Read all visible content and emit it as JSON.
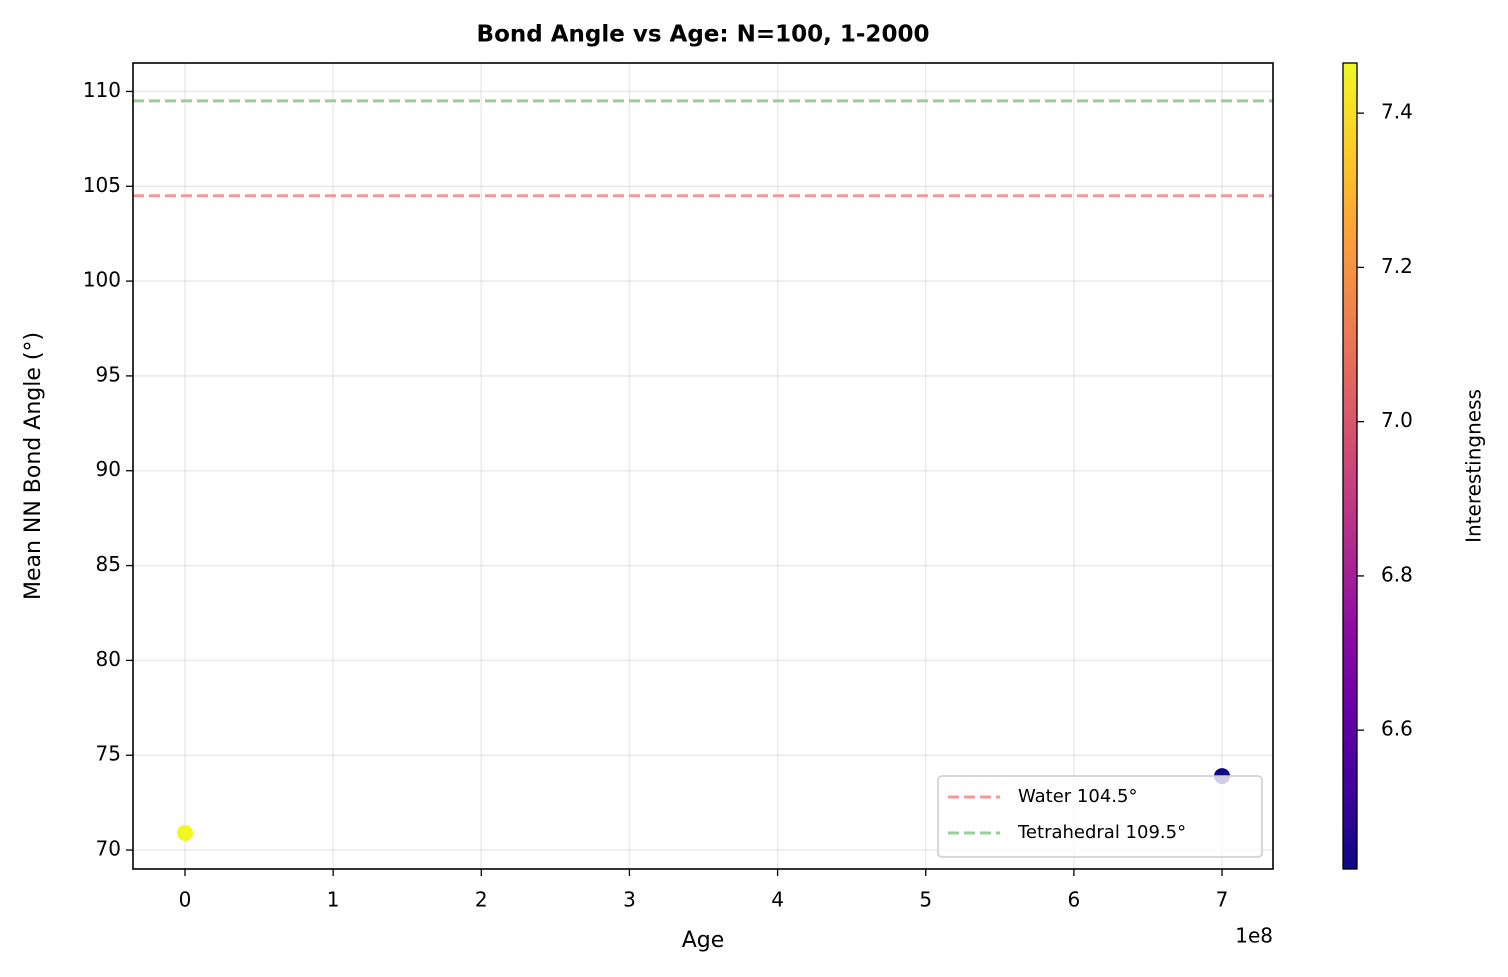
{
  "chart_data": {
    "type": "scatter",
    "title": "Bond Angle vs Age: N=100, 1-2000",
    "x_label": "Age",
    "y_label": "Mean NN Bond Angle (°)",
    "x_offset_label": "1e8",
    "x": [
      0,
      700000000
    ],
    "y": [
      70.9,
      73.9
    ],
    "color_values": [
      7.46,
      6.42
    ],
    "colormap": "plasma",
    "colorbar_label": "Interestingness",
    "colorbar_lim": [
      6.42,
      7.465
    ],
    "colorbar_ticks": [
      6.6,
      6.8,
      7.0,
      7.2,
      7.4
    ],
    "xlim": [
      -35100000,
      734400000
    ],
    "xticks": [
      0,
      {
        "value": 100000000,
        "label": "1"
      },
      {
        "value": 200000000,
        "label": "2"
      },
      {
        "value": 300000000,
        "label": "3"
      },
      {
        "value": 400000000,
        "label": "4"
      },
      {
        "value": 500000000,
        "label": "5"
      },
      {
        "value": 600000000,
        "label": "6"
      },
      {
        "value": 700000000,
        "label": "7"
      }
    ],
    "ylim": [
      69,
      111.5
    ],
    "yticks": [
      70,
      75,
      80,
      85,
      90,
      95,
      100,
      105,
      110
    ],
    "hlines": [
      {
        "name": "Water 104.5°",
        "value": 104.5,
        "color": "#f4999a"
      },
      {
        "name": "Tetrahedral 109.5°",
        "value": 109.5,
        "color": "#99cc99"
      }
    ],
    "grid": true,
    "legend": "lower right"
  }
}
